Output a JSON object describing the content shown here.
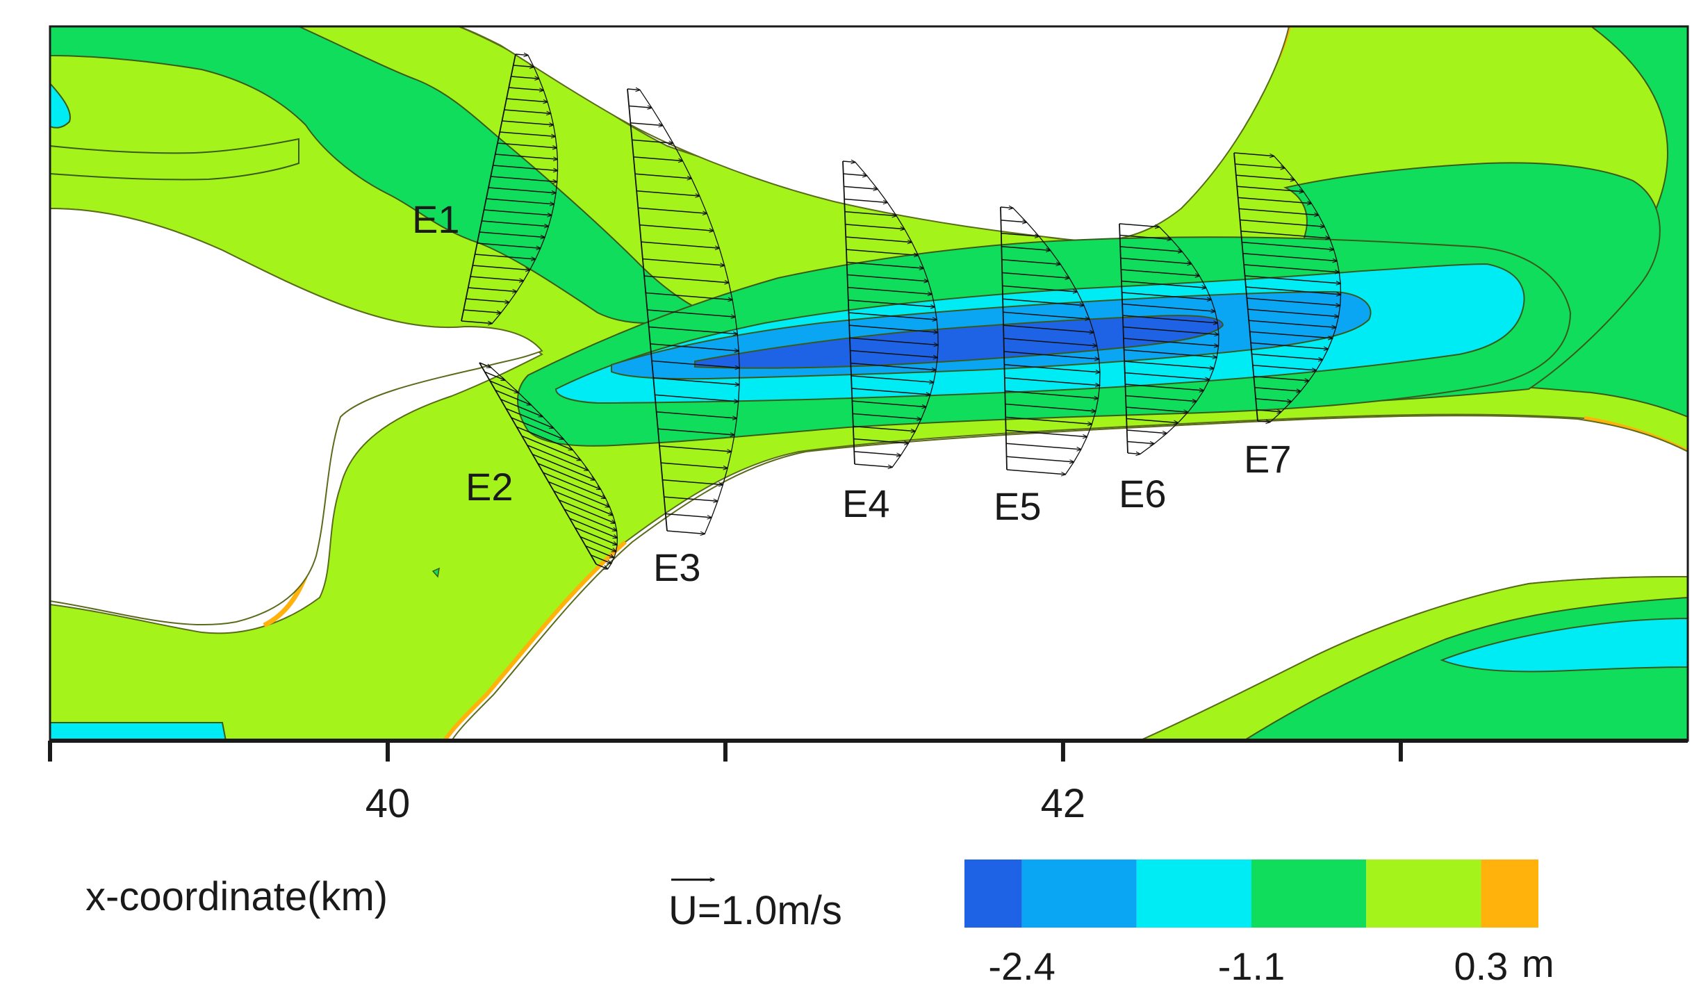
{
  "chart_data": {
    "type": "contour",
    "title": "",
    "xlabel": "x-coordinate(km)",
    "x_ticks": [
      39,
      40,
      41,
      42,
      43
    ],
    "x_tick_labels": [
      "",
      "40",
      "",
      "42",
      ""
    ],
    "xlim": [
      39.0,
      43.85
    ],
    "sections": [
      "E1",
      "E2",
      "E3",
      "E4",
      "E5",
      "E6",
      "E7"
    ],
    "vector_scale": {
      "label": "U",
      "suffix": "=1.0m/s"
    },
    "colorbar": {
      "unit": "m",
      "tick_labels": [
        "-2.4",
        "-1.1",
        "0.3"
      ],
      "colors": [
        "#1e63e6",
        "#0aa6f4",
        "#00ecf5",
        "#10dd5c",
        "#a4f31a",
        "#ffb10c"
      ]
    },
    "levels_shown": {
      "deepest_zone": "#1e63e6",
      "deep": "#0aa6f4",
      "mid": "#00ecf5",
      "shallow": "#10dd5c",
      "shoal": "#a4f31a",
      "bank": "#ffb10c"
    }
  }
}
